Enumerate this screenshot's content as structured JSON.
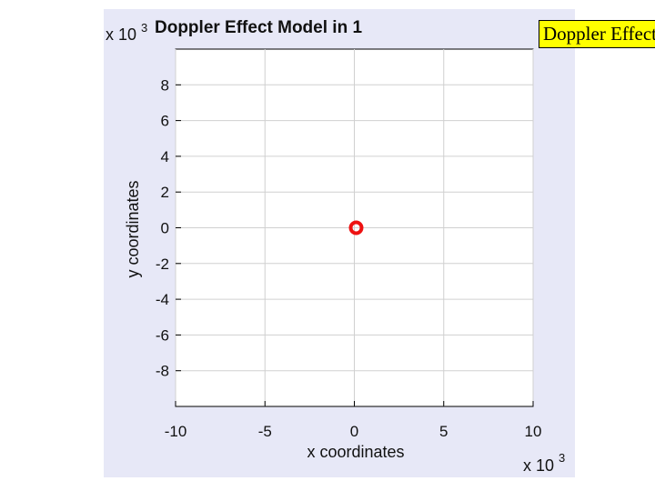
{
  "chart_data": {
    "type": "scatter",
    "title": "Doppler Effect Model in 1",
    "xlabel": "x coordinates",
    "ylabel": "y coordinates",
    "x_exponent_label": {
      "base": "x 10",
      "exp": "3"
    },
    "y_exponent_label": {
      "base": "x 10",
      "exp": "3"
    },
    "xlim": [
      -10,
      10
    ],
    "ylim": [
      -10,
      10
    ],
    "x_ticks": [
      -10,
      -5,
      0,
      5,
      10
    ],
    "y_ticks": [
      8,
      6,
      4,
      2,
      0,
      -2,
      -4,
      -6,
      -8
    ],
    "grid": true,
    "points": [
      {
        "x": 0,
        "y": 0
      }
    ],
    "marker_color": "#ee1111"
  },
  "tooltip": {
    "text": "Doppler Effect"
  },
  "colors": {
    "figure_bg": "#e7e8f7",
    "axes_bg": "#ffffff",
    "grid": "#d0d0d0",
    "tooltip_bg": "#ffff00"
  }
}
